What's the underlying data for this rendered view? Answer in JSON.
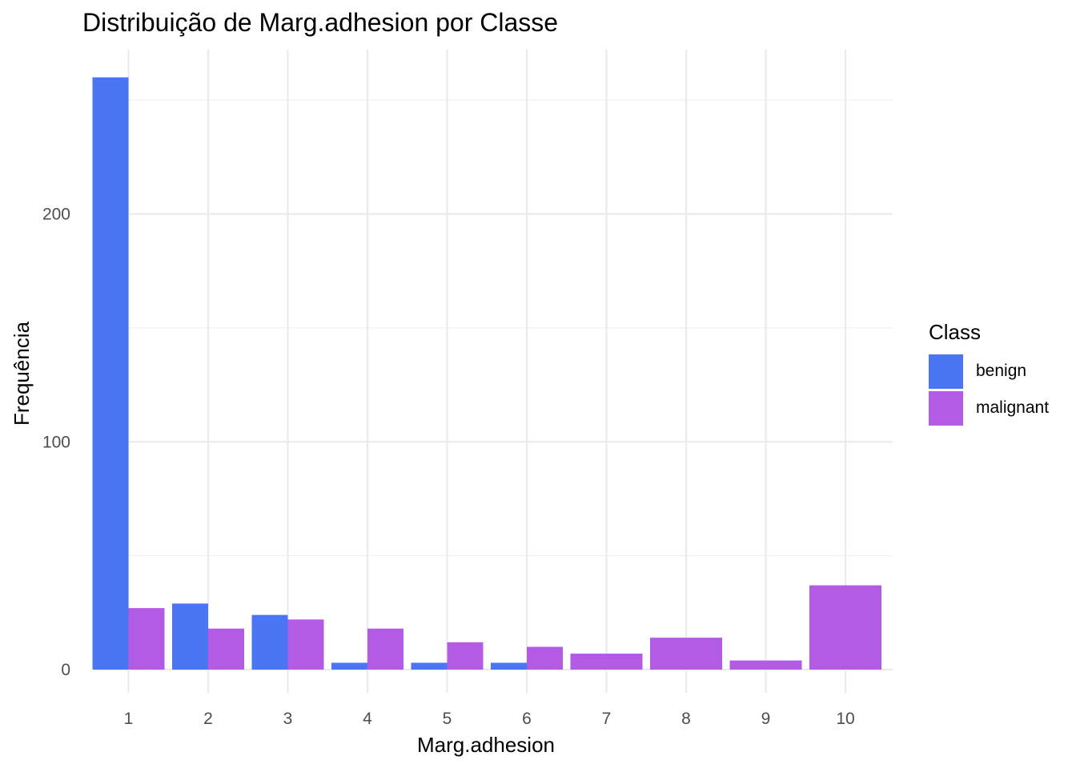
{
  "chart_data": {
    "type": "bar",
    "title": "Distribuição de Marg.adhesion por Classe",
    "xlabel": "Marg.adhesion",
    "ylabel": "Frequência",
    "categories": [
      "1",
      "2",
      "3",
      "4",
      "5",
      "6",
      "7",
      "8",
      "9",
      "10"
    ],
    "series": [
      {
        "name": "benign",
        "color": "#4A76F4",
        "values": [
          260,
          29,
          24,
          3,
          3,
          3,
          0,
          0,
          0,
          0
        ]
      },
      {
        "name": "malignant",
        "color": "#B35BE5",
        "values": [
          27,
          18,
          22,
          18,
          12,
          10,
          7,
          14,
          4,
          37
        ]
      }
    ],
    "ylim": [
      0,
      260
    ],
    "yticks": [
      0,
      100,
      200
    ],
    "grid": true,
    "legend": {
      "title": "Class",
      "position": "right"
    }
  }
}
